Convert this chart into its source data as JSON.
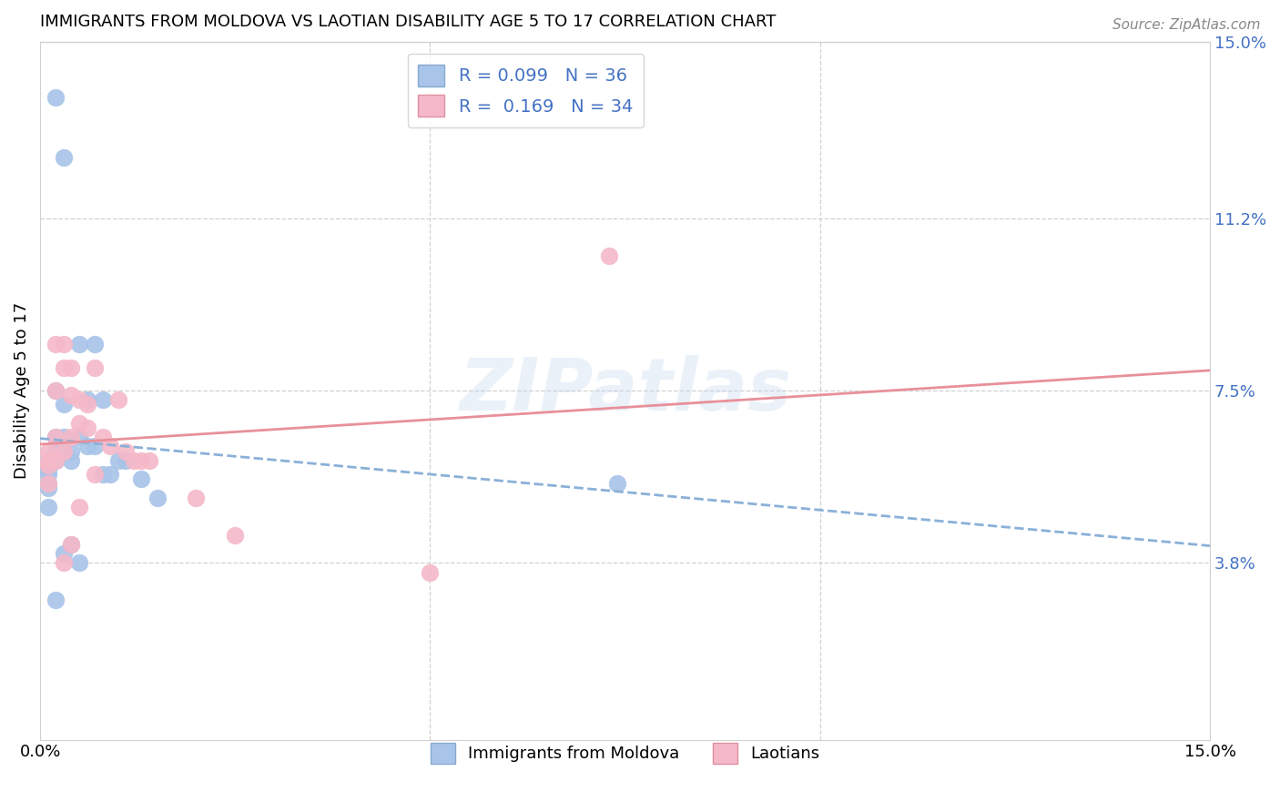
{
  "title": "IMMIGRANTS FROM MOLDOVA VS LAOTIAN DISABILITY AGE 5 TO 17 CORRELATION CHART",
  "source": "Source: ZipAtlas.com",
  "ylabel": "Disability Age 5 to 17",
  "xmin": 0.0,
  "xmax": 0.15,
  "ymin": 0.0,
  "ymax": 0.15,
  "yticks": [
    0.038,
    0.075,
    0.112,
    0.15
  ],
  "ytick_labels": [
    "3.8%",
    "7.5%",
    "11.2%",
    "15.0%"
  ],
  "color_blue": "#a8c4e8",
  "color_pink": "#f5b8c8",
  "color_blue_line": "#8ab0d8",
  "color_pink_line": "#e8909a",
  "watermark": "ZIPatlas",
  "moldova_x": [
    0.001,
    0.001,
    0.001,
    0.001,
    0.001,
    0.001,
    0.001,
    0.002,
    0.002,
    0.002,
    0.002,
    0.002,
    0.003,
    0.003,
    0.003,
    0.003,
    0.003,
    0.004,
    0.004,
    0.004,
    0.005,
    0.005,
    0.005,
    0.006,
    0.006,
    0.007,
    0.007,
    0.008,
    0.008,
    0.009,
    0.01,
    0.011,
    0.013,
    0.015,
    0.074,
    0.002
  ],
  "moldova_y": [
    0.06,
    0.06,
    0.058,
    0.057,
    0.055,
    0.054,
    0.05,
    0.138,
    0.075,
    0.065,
    0.062,
    0.06,
    0.125,
    0.072,
    0.065,
    0.062,
    0.04,
    0.062,
    0.06,
    0.042,
    0.085,
    0.065,
    0.038,
    0.073,
    0.063,
    0.085,
    0.063,
    0.073,
    0.057,
    0.057,
    0.06,
    0.06,
    0.056,
    0.052,
    0.055,
    0.03
  ],
  "laotian_x": [
    0.001,
    0.001,
    0.001,
    0.001,
    0.002,
    0.002,
    0.002,
    0.002,
    0.003,
    0.003,
    0.003,
    0.003,
    0.004,
    0.004,
    0.004,
    0.004,
    0.005,
    0.005,
    0.005,
    0.006,
    0.006,
    0.007,
    0.007,
    0.008,
    0.009,
    0.01,
    0.011,
    0.012,
    0.013,
    0.014,
    0.073,
    0.02,
    0.025,
    0.05
  ],
  "laotian_y": [
    0.062,
    0.06,
    0.059,
    0.055,
    0.085,
    0.075,
    0.065,
    0.06,
    0.085,
    0.08,
    0.062,
    0.038,
    0.08,
    0.074,
    0.065,
    0.042,
    0.073,
    0.068,
    0.05,
    0.072,
    0.067,
    0.08,
    0.057,
    0.065,
    0.063,
    0.073,
    0.062,
    0.06,
    0.06,
    0.06,
    0.104,
    0.052,
    0.044,
    0.036
  ]
}
